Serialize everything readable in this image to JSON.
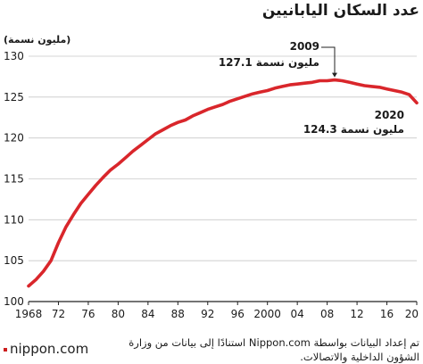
{
  "title": "عدد السكان اليابانيين",
  "unit_label": "(مليون نسمة)",
  "source_text": "تم إعداد البيانات بواسطة Nippon.com استنادًا إلى بيانات من وزارة الشؤون الداخلية والاتصالات.",
  "logo_text": "nippon.com",
  "colors": {
    "line": "#d9262b",
    "text": "#1a1a1a"
  },
  "chart_data": {
    "type": "line",
    "title": "عدد السكان اليابانيين",
    "ylabel": "(مليون نسمة)",
    "xlabel": "",
    "ylim": [
      100,
      130
    ],
    "xlim": [
      1968,
      2020
    ],
    "y_ticks": [
      "100",
      "105",
      "110",
      "115",
      "120",
      "125",
      "130"
    ],
    "x_ticks": [
      {
        "value": 1968,
        "label": "1968"
      },
      {
        "value": 1972,
        "label": "72"
      },
      {
        "value": 1976,
        "label": "76"
      },
      {
        "value": 1980,
        "label": "80"
      },
      {
        "value": 1984,
        "label": "84"
      },
      {
        "value": 1988,
        "label": "88"
      },
      {
        "value": 1992,
        "label": "92"
      },
      {
        "value": 1996,
        "label": "96"
      },
      {
        "value": 2000,
        "label": "2000"
      },
      {
        "value": 2004,
        "label": "04"
      },
      {
        "value": 2008,
        "label": "08"
      },
      {
        "value": 2012,
        "label": "12"
      },
      {
        "value": 2016,
        "label": "16"
      },
      {
        "value": 2020,
        "label": "20"
      }
    ],
    "grid": true,
    "series": [
      {
        "x": [
          1968,
          1969,
          1970,
          1971,
          1972,
          1973,
          1974,
          1975,
          1976,
          1977,
          1978,
          1979,
          1980,
          1981,
          1982,
          1983,
          1984,
          1985,
          1986,
          1987,
          1988,
          1989,
          1990,
          1991,
          1992,
          1993,
          1994,
          1995,
          1996,
          1997,
          1998,
          1999,
          2000,
          2001,
          2002,
          2003,
          2004,
          2005,
          2006,
          2007,
          2008,
          2009,
          2010,
          2011,
          2012,
          2013,
          2014,
          2015,
          2016,
          2017,
          2018,
          2019,
          2020
        ],
        "values": [
          101.9,
          102.7,
          103.7,
          105.0,
          107.2,
          109.1,
          110.6,
          112.0,
          113.1,
          114.2,
          115.2,
          116.1,
          116.8,
          117.6,
          118.4,
          119.1,
          119.8,
          120.5,
          121.0,
          121.5,
          121.9,
          122.2,
          122.7,
          123.1,
          123.5,
          123.8,
          124.1,
          124.5,
          124.8,
          125.1,
          125.4,
          125.6,
          125.8,
          126.1,
          126.3,
          126.5,
          126.6,
          126.7,
          126.8,
          127.0,
          127.0,
          127.1,
          127.0,
          126.8,
          126.6,
          126.4,
          126.3,
          126.2,
          126.0,
          125.8,
          125.6,
          125.3,
          124.3
        ]
      }
    ],
    "annotations": [
      {
        "year": "2009",
        "value": "127.1",
        "unit": "مليون نسمة"
      },
      {
        "year": "2020",
        "value": "124.3",
        "unit": "مليون نسمة"
      }
    ]
  }
}
